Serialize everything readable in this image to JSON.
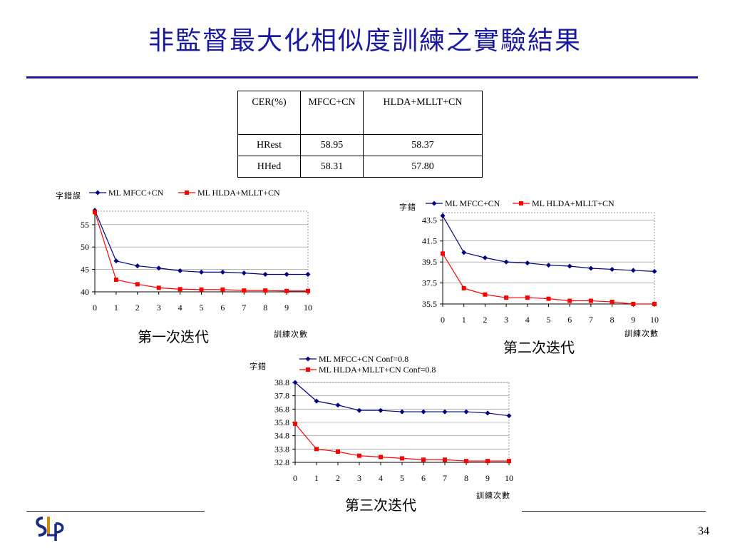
{
  "slide": {
    "title": "非監督最大化相似度訓練之實驗結果",
    "page_number": "34",
    "logo_text": "SLP"
  },
  "table": {
    "headers": [
      "CER(%)",
      "MFCC+CN",
      "HLDA+MLLT+CN"
    ],
    "rows": [
      [
        "HRest",
        "58.95",
        "58.37"
      ],
      [
        "HHed",
        "58.31",
        "57.80"
      ]
    ]
  },
  "colors": {
    "title": "#1a1aa0",
    "series_blue": "#000080",
    "series_red": "#ff0000"
  },
  "captions": {
    "chart1": "第一次迭代",
    "chart2": "第二次迭代",
    "chart3": "第三次迭代"
  },
  "chart_data": [
    {
      "type": "line",
      "ylabel": "字錯誤",
      "xlabel": "訓練次數",
      "x": [
        0,
        1,
        2,
        3,
        4,
        5,
        6,
        7,
        8,
        9,
        10
      ],
      "ylim": [
        40,
        58
      ],
      "yticks": [
        40,
        45,
        50,
        55
      ],
      "grid": true,
      "legend": "top",
      "series": [
        {
          "name": "ML MFCC+CN",
          "values": [
            58.2,
            46.9,
            45.8,
            45.3,
            44.7,
            44.4,
            44.4,
            44.2,
            43.9,
            43.9,
            43.9
          ]
        },
        {
          "name": "ML HLDA+MLLT+CN",
          "values": [
            57.8,
            42.7,
            41.7,
            40.9,
            40.6,
            40.5,
            40.5,
            40.3,
            40.3,
            40.2,
            40.2
          ]
        }
      ]
    },
    {
      "type": "line",
      "ylabel": "字錯",
      "xlabel": "訓練次數",
      "x": [
        0,
        1,
        2,
        3,
        4,
        5,
        6,
        7,
        8,
        9,
        10
      ],
      "ylim": [
        35.5,
        44.2
      ],
      "yticks": [
        35.5,
        37.5,
        39.5,
        41.5,
        43.5
      ],
      "grid": true,
      "legend": "top",
      "series": [
        {
          "name": "ML MFCC+CN",
          "values": [
            43.9,
            40.4,
            39.9,
            39.5,
            39.4,
            39.2,
            39.1,
            38.9,
            38.8,
            38.7,
            38.6
          ]
        },
        {
          "name": "ML HLDA+MLLT+CN",
          "values": [
            40.3,
            37.0,
            36.4,
            36.1,
            36.1,
            36.0,
            35.8,
            35.8,
            35.7,
            35.5,
            35.5
          ]
        }
      ]
    },
    {
      "type": "line",
      "ylabel": "字錯",
      "xlabel": "訓練次數",
      "x": [
        0,
        1,
        2,
        3,
        4,
        5,
        6,
        7,
        8,
        9,
        10
      ],
      "ylim": [
        32.8,
        38.8
      ],
      "yticks": [
        32.8,
        33.8,
        34.8,
        35.8,
        36.8,
        37.8,
        38.8
      ],
      "grid": true,
      "legend": "top",
      "series": [
        {
          "name": "ML MFCC+CN Conf=0.8",
          "values": [
            38.8,
            37.4,
            37.1,
            36.7,
            36.7,
            36.6,
            36.6,
            36.6,
            36.6,
            36.5,
            36.3
          ]
        },
        {
          "name": "ML HLDA+MLLT+CN Conf=0.8",
          "values": [
            35.7,
            33.8,
            33.6,
            33.3,
            33.2,
            33.1,
            33.0,
            33.0,
            32.9,
            32.9,
            32.9
          ]
        }
      ]
    }
  ]
}
